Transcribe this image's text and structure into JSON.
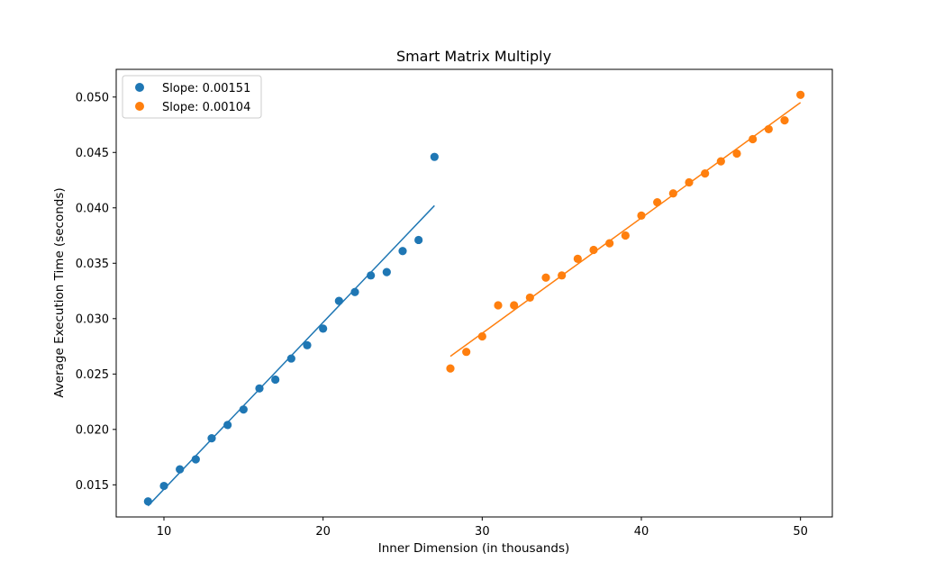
{
  "chart_data": {
    "type": "scatter",
    "title": "Smart Matrix Multiply",
    "xlabel": "Inner Dimension (in thousands)",
    "ylabel": "Average Execution Time (seconds)",
    "xlim": [
      7,
      52
    ],
    "ylim": [
      0.0121,
      0.0525
    ],
    "x_ticks": [
      10,
      20,
      30,
      40,
      50
    ],
    "y_ticks": [
      0.015,
      0.02,
      0.025,
      0.03,
      0.035,
      0.04,
      0.045,
      0.05
    ],
    "x_tick_labels": [
      "10",
      "20",
      "30",
      "40",
      "50"
    ],
    "y_tick_labels": [
      "0.015",
      "0.020",
      "0.025",
      "0.030",
      "0.035",
      "0.040",
      "0.045",
      "0.050"
    ],
    "grid": false,
    "legend_position": "top-left",
    "series": [
      {
        "name": "Slope: 0.00151",
        "color": "#1f77b4",
        "x": [
          9,
          10,
          11,
          12,
          13,
          14,
          15,
          16,
          17,
          18,
          19,
          20,
          21,
          22,
          23,
          24,
          25,
          26,
          27
        ],
        "y": [
          0.0135,
          0.0149,
          0.0164,
          0.0173,
          0.0192,
          0.0204,
          0.0218,
          0.0237,
          0.0245,
          0.0264,
          0.0276,
          0.0291,
          0.0316,
          0.0324,
          0.0339,
          0.0342,
          0.0361,
          0.0371,
          0.0446
        ],
        "fit": {
          "x": [
            9,
            27
          ],
          "y": [
            0.0131,
            0.0402
          ]
        }
      },
      {
        "name": "Slope: 0.00104",
        "color": "#ff7f0e",
        "x": [
          28,
          29,
          30,
          31,
          32,
          33,
          34,
          35,
          36,
          37,
          38,
          39,
          40,
          41,
          42,
          43,
          44,
          45,
          46,
          47,
          48,
          49,
          50
        ],
        "y": [
          0.0255,
          0.027,
          0.0284,
          0.0312,
          0.0312,
          0.0319,
          0.0337,
          0.0339,
          0.0354,
          0.0362,
          0.0368,
          0.0375,
          0.0393,
          0.0405,
          0.0413,
          0.0423,
          0.0431,
          0.0442,
          0.0449,
          0.0462,
          0.0471,
          0.0479,
          0.0502
        ],
        "fit": {
          "x": [
            28,
            50
          ],
          "y": [
            0.0266,
            0.0495
          ]
        }
      }
    ]
  }
}
